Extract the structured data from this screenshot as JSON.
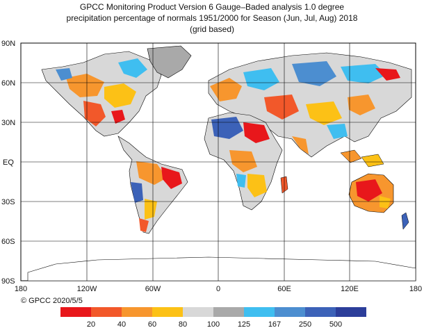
{
  "title": {
    "line1": "GPCC Monitoring Product Version 6 Gauge–Baded analysis 1.0 degree",
    "line2": "precipitation percentage of normals 1951/2000 for Season (Jun, Jul, Aug) 2018",
    "line3": "(grid based)"
  },
  "axes": {
    "lat_labels": [
      "90N",
      "60N",
      "30N",
      "EQ",
      "30S",
      "60S",
      "90S"
    ],
    "lon_labels": [
      "180",
      "120W",
      "60W",
      "0",
      "60E",
      "120E",
      "180"
    ]
  },
  "copyright": "© GPCC 2020/5/5",
  "legend": {
    "labels": [
      "20",
      "40",
      "60",
      "80",
      "100",
      "125",
      "167",
      "250",
      "500"
    ],
    "colors": [
      "#e8171b",
      "#f2582a",
      "#f7962e",
      "#fcc116",
      "#d8d8d8",
      "#a9a9a9",
      "#3fbef0",
      "#4c8ed0",
      "#3c62b8",
      "#2c3e9a"
    ]
  }
}
